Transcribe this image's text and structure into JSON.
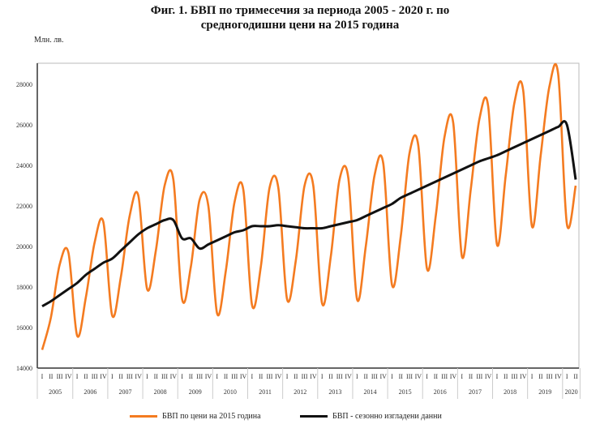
{
  "chart_data": {
    "type": "line",
    "title": "Фиг. 1. БВП по тримесечия за периода 2005 - 2020 г. по средногодишни цени на 2015 година",
    "title_lines": [
      "Фиг. 1. БВП по тримесечия за периода 2005 - 2020 г. по",
      "средногодишни цени на 2015 година"
    ],
    "ylabel": "Млн. лв.",
    "ylim": [
      14000,
      29000
    ],
    "yticks": [
      14000,
      16000,
      18000,
      20000,
      22000,
      24000,
      26000,
      28000
    ],
    "years": [
      "2005",
      "2006",
      "2007",
      "2008",
      "2009",
      "2010",
      "2011",
      "2012",
      "2013",
      "2014",
      "2015",
      "2016",
      "2017",
      "2018",
      "2019",
      "2020"
    ],
    "quarters": [
      "I",
      "II",
      "III",
      "IV"
    ],
    "grid": false,
    "legend_position": "bottom",
    "series": [
      {
        "name": "БВП по цени на 2015 година",
        "color": "#f47b20",
        "values": [
          14900,
          16500,
          19100,
          19700,
          15600,
          17500,
          20200,
          21200,
          16600,
          18500,
          21500,
          22500,
          17900,
          19800,
          23000,
          23300,
          17400,
          19000,
          22300,
          22000,
          16700,
          18800,
          22200,
          22800,
          17100,
          19000,
          22900,
          22900,
          17400,
          19300,
          23000,
          23000,
          17200,
          19500,
          23300,
          23400,
          17400,
          20000,
          23500,
          24100,
          18100,
          20500,
          24600,
          25000,
          18900,
          21500,
          25400,
          26100,
          19500,
          22800,
          26300,
          26900,
          20100,
          23500,
          27100,
          27700,
          21000,
          24500,
          27900,
          28500,
          21100,
          23000
        ]
      },
      {
        "name": "БВП - сезонно изгладени данни",
        "color": "#111111",
        "values": [
          17050,
          17300,
          17600,
          17900,
          18200,
          18600,
          18900,
          19200,
          19400,
          19800,
          20200,
          20600,
          20900,
          21100,
          21300,
          21300,
          20400,
          20400,
          19900,
          20100,
          20300,
          20500,
          20700,
          20800,
          21000,
          21000,
          21000,
          21050,
          21000,
          20950,
          20900,
          20900,
          20900,
          21000,
          21100,
          21200,
          21300,
          21500,
          21700,
          21900,
          22100,
          22400,
          22600,
          22800,
          23000,
          23200,
          23400,
          23600,
          23800,
          24000,
          24200,
          24350,
          24500,
          24700,
          24900,
          25100,
          25300,
          25500,
          25700,
          25900,
          26000,
          23300
        ]
      }
    ]
  }
}
